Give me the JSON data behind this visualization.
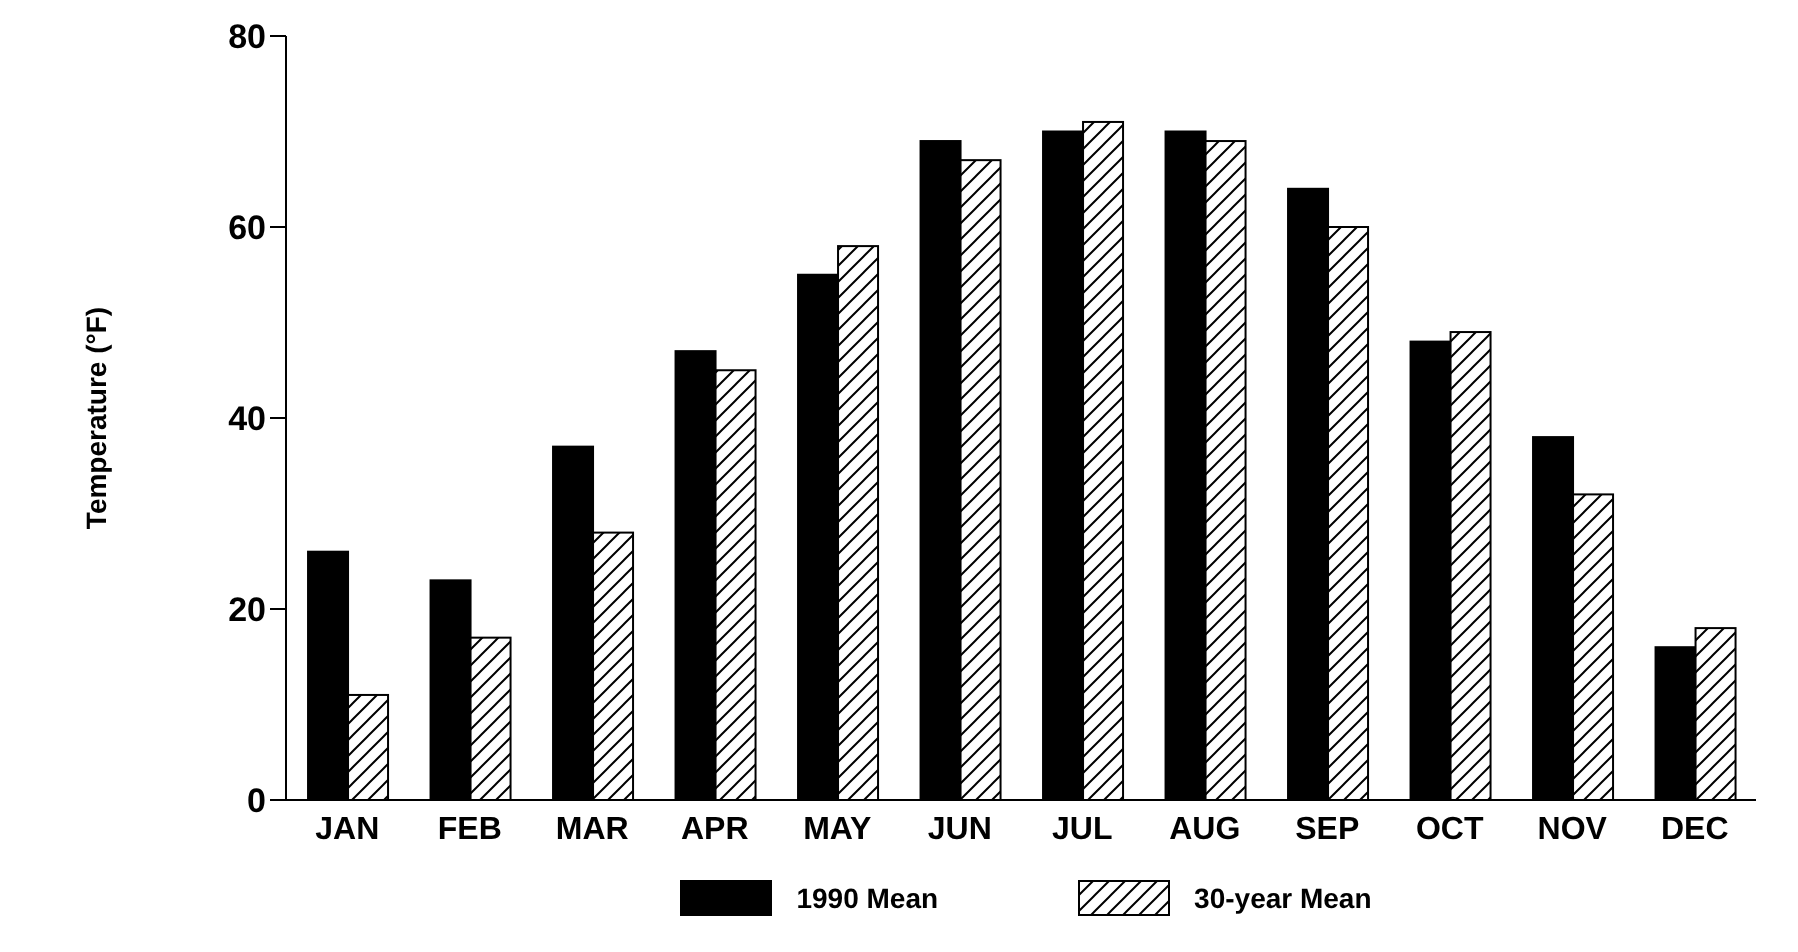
{
  "chart_data": {
    "type": "bar",
    "ylabel": "Temperature (°F)",
    "categories": [
      "JAN",
      "FEB",
      "MAR",
      "APR",
      "MAY",
      "JUN",
      "JUL",
      "AUG",
      "SEP",
      "OCT",
      "NOV",
      "DEC"
    ],
    "series": [
      {
        "name": "1990 Mean",
        "color": "#000000",
        "values": [
          26,
          23,
          37,
          47,
          55,
          69,
          70,
          70,
          64,
          48,
          38,
          16
        ]
      },
      {
        "name": "30-year Mean",
        "color": "#ffffff",
        "values": [
          11,
          17,
          28,
          45,
          58,
          67,
          71,
          69,
          60,
          49,
          32,
          18
        ]
      }
    ],
    "ylim": [
      0,
      80
    ],
    "yticks": [
      0,
      20,
      40,
      60,
      80
    ],
    "grid": false,
    "legend": "bottom"
  }
}
